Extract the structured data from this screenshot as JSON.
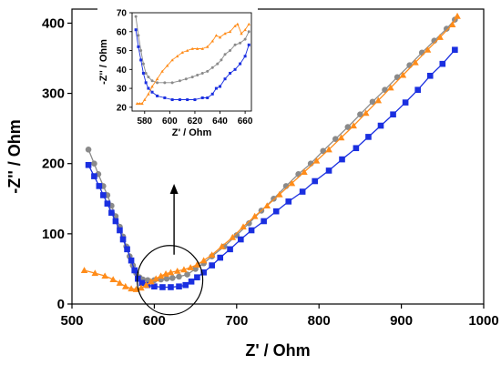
{
  "chart_data": [
    {
      "type": "scatter",
      "title": "",
      "xlabel": "Z' / Ohm",
      "ylabel": "-Z'' / Ohm",
      "xlim": [
        500,
        1000
      ],
      "ylim": [
        0,
        420
      ],
      "xticks": [
        500,
        600,
        700,
        800,
        900,
        1000
      ],
      "yticks": [
        0,
        100,
        200,
        300,
        400
      ],
      "grid": false,
      "legend": "none",
      "annotations": [
        "circle around the 580-660 Ohm region with an upward arrow pointing to the inset"
      ],
      "series": [
        {
          "color": "#8a8a8a",
          "marker": "circle",
          "points": [
            [
              520,
              220
            ],
            [
              527,
              200
            ],
            [
              532,
              185
            ],
            [
              538,
              168
            ],
            [
              543,
              155
            ],
            [
              548,
              140
            ],
            [
              553,
              125
            ],
            [
              558,
              110
            ],
            [
              562,
              96
            ],
            [
              566,
              82
            ],
            [
              570,
              68
            ],
            [
              574,
              55
            ],
            [
              578,
              44
            ],
            [
              582,
              38
            ],
            [
              586,
              35
            ],
            [
              592,
              34
            ],
            [
              600,
              34
            ],
            [
              608,
              35
            ],
            [
              615,
              36
            ],
            [
              622,
              37
            ],
            [
              630,
              39
            ],
            [
              640,
              42
            ],
            [
              650,
              50
            ],
            [
              660,
              58
            ],
            [
              670,
              68
            ],
            [
              685,
              82
            ],
            [
              700,
              98
            ],
            [
              715,
              115
            ],
            [
              730,
              133
            ],
            [
              745,
              150
            ],
            [
              760,
              168
            ],
            [
              775,
              185
            ],
            [
              790,
              200
            ],
            [
              805,
              218
            ],
            [
              820,
              235
            ],
            [
              835,
              252
            ],
            [
              850,
              270
            ],
            [
              865,
              288
            ],
            [
              880,
              305
            ],
            [
              895,
              323
            ],
            [
              910,
              340
            ],
            [
              925,
              358
            ],
            [
              940,
              375
            ],
            [
              955,
              392
            ],
            [
              965,
              405
            ]
          ]
        },
        {
          "color": "#1a2fe0",
          "marker": "square",
          "points": [
            [
              520,
              198
            ],
            [
              527,
              182
            ],
            [
              533,
              168
            ],
            [
              538,
              155
            ],
            [
              543,
              143
            ],
            [
              548,
              130
            ],
            [
              553,
              118
            ],
            [
              558,
              105
            ],
            [
              562,
              92
            ],
            [
              567,
              78
            ],
            [
              572,
              62
            ],
            [
              576,
              48
            ],
            [
              580,
              36
            ],
            [
              585,
              30
            ],
            [
              592,
              27
            ],
            [
              600,
              25
            ],
            [
              610,
              24
            ],
            [
              620,
              24
            ],
            [
              630,
              25
            ],
            [
              638,
              27
            ],
            [
              645,
              32
            ],
            [
              652,
              38
            ],
            [
              660,
              45
            ],
            [
              670,
              55
            ],
            [
              680,
              66
            ],
            [
              692,
              78
            ],
            [
              705,
              92
            ],
            [
              718,
              105
            ],
            [
              733,
              118
            ],
            [
              748,
              132
            ],
            [
              763,
              146
            ],
            [
              780,
              160
            ],
            [
              795,
              175
            ],
            [
              812,
              190
            ],
            [
              828,
              206
            ],
            [
              845,
              222
            ],
            [
              860,
              238
            ],
            [
              875,
              254
            ],
            [
              890,
              270
            ],
            [
              905,
              287
            ],
            [
              920,
              305
            ],
            [
              935,
              325
            ],
            [
              950,
              342
            ],
            [
              965,
              362
            ]
          ]
        },
        {
          "color": "#ff8c1a",
          "marker": "triangle",
          "points": [
            [
              515,
              48
            ],
            [
              528,
              44
            ],
            [
              540,
              40
            ],
            [
              550,
              35
            ],
            [
              558,
              30
            ],
            [
              565,
              25
            ],
            [
              572,
              22
            ],
            [
              578,
              21
            ],
            [
              584,
              23
            ],
            [
              590,
              27
            ],
            [
              596,
              32
            ],
            [
              602,
              36
            ],
            [
              608,
              40
            ],
            [
              614,
              43
            ],
            [
              620,
              45
            ],
            [
              628,
              47
            ],
            [
              636,
              49
            ],
            [
              644,
              52
            ],
            [
              652,
              56
            ],
            [
              660,
              62
            ],
            [
              670,
              70
            ],
            [
              682,
              82
            ],
            [
              695,
              95
            ],
            [
              708,
              110
            ],
            [
              722,
              125
            ],
            [
              737,
              140
            ],
            [
              752,
              156
            ],
            [
              767,
              172
            ],
            [
              782,
              188
            ],
            [
              797,
              204
            ],
            [
              812,
              220
            ],
            [
              827,
              237
            ],
            [
              842,
              254
            ],
            [
              857,
              272
            ],
            [
              872,
              290
            ],
            [
              887,
              308
            ],
            [
              902,
              326
            ],
            [
              917,
              344
            ],
            [
              932,
              362
            ],
            [
              947,
              380
            ],
            [
              962,
              398
            ],
            [
              968,
              410
            ]
          ]
        }
      ]
    },
    {
      "type": "scatter",
      "title": "",
      "xlabel": "Z' / Ohm",
      "ylabel": "-Z'' / Ohm",
      "xlim": [
        570,
        665
      ],
      "ylim": [
        18,
        70
      ],
      "xticks": [
        580,
        600,
        620,
        640,
        660
      ],
      "yticks": [
        20,
        30,
        40,
        50,
        60,
        70
      ],
      "grid": false,
      "legend": "none",
      "series": [
        {
          "color": "#8a8a8a",
          "marker": "circle",
          "points": [
            [
              573,
              68
            ],
            [
              575,
              58
            ],
            [
              577,
              50
            ],
            [
              579,
              43
            ],
            [
              581,
              38
            ],
            [
              583,
              36
            ],
            [
              586,
              34
            ],
            [
              590,
              33
            ],
            [
              596,
              33
            ],
            [
              602,
              33
            ],
            [
              608,
              34
            ],
            [
              613,
              35
            ],
            [
              618,
              36
            ],
            [
              622,
              37
            ],
            [
              626,
              38
            ],
            [
              630,
              39
            ],
            [
              634,
              41
            ],
            [
              638,
              43
            ],
            [
              641,
              45
            ],
            [
              644,
              48
            ],
            [
              648,
              50
            ],
            [
              652,
              53
            ],
            [
              656,
              54
            ],
            [
              660,
              56
            ],
            [
              663,
              60
            ]
          ]
        },
        {
          "color": "#1a2fe0",
          "marker": "square",
          "points": [
            [
              573,
              61
            ],
            [
              575,
              52
            ],
            [
              577,
              45
            ],
            [
              579,
              38
            ],
            [
              581,
              33
            ],
            [
              583,
              30
            ],
            [
              586,
              28
            ],
            [
              590,
              26
            ],
            [
              596,
              25
            ],
            [
              602,
              24
            ],
            [
              608,
              24
            ],
            [
              614,
              24
            ],
            [
              620,
              24
            ],
            [
              626,
              25
            ],
            [
              630,
              25
            ],
            [
              634,
              27
            ],
            [
              637,
              30
            ],
            [
              640,
              31
            ],
            [
              644,
              35
            ],
            [
              648,
              38
            ],
            [
              652,
              40
            ],
            [
              656,
              43
            ],
            [
              660,
              47
            ],
            [
              663,
              53
            ]
          ]
        },
        {
          "color": "#ff8c1a",
          "marker": "triangle",
          "points": [
            [
              574,
              22
            ],
            [
              576,
              22
            ],
            [
              578,
              22
            ],
            [
              580,
              24
            ],
            [
              583,
              27
            ],
            [
              586,
              31
            ],
            [
              590,
              35
            ],
            [
              594,
              39
            ],
            [
              598,
              42
            ],
            [
              602,
              45
            ],
            [
              606,
              47
            ],
            [
              610,
              49
            ],
            [
              614,
              50
            ],
            [
              618,
              51
            ],
            [
              622,
              51
            ],
            [
              626,
              51
            ],
            [
              630,
              52
            ],
            [
              634,
              55
            ],
            [
              637,
              58
            ],
            [
              640,
              57
            ],
            [
              644,
              59
            ],
            [
              648,
              60
            ],
            [
              652,
              63
            ],
            [
              654,
              64
            ],
            [
              657,
              59
            ],
            [
              660,
              61
            ],
            [
              663,
              64
            ]
          ]
        }
      ]
    }
  ]
}
